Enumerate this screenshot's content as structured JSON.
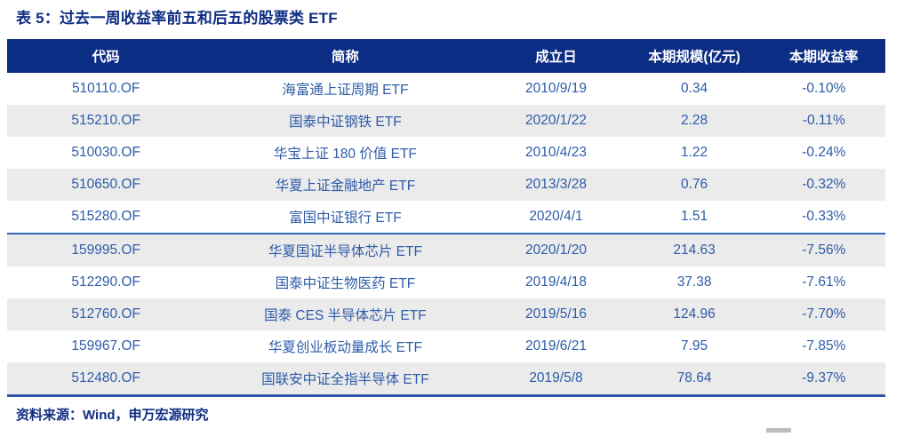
{
  "title": "表 5：过去一周收益率前五和后五的股票类 ETF",
  "source": "资料来源：Wind，申万宏源研究",
  "colors": {
    "header_bg": "#0c2d84",
    "header_text": "#ffffff",
    "cell_text": "#2e5ca8",
    "stripe_bg": "#ebebeb",
    "title_text": "#0f2d82",
    "divider": "#3565b5",
    "bottom_border": "#2f55a8"
  },
  "table": {
    "columns": [
      "代码",
      "简称",
      "成立日",
      "本期规模(亿元)",
      "本期收益率"
    ],
    "divider_after_row": 5,
    "rows": [
      [
        "510110.OF",
        "海富通上证周期 ETF",
        "2010/9/19",
        "0.34",
        "-0.10%"
      ],
      [
        "515210.OF",
        "国泰中证钢铁 ETF",
        "2020/1/22",
        "2.28",
        "-0.11%"
      ],
      [
        "510030.OF",
        "华宝上证 180 价值 ETF",
        "2010/4/23",
        "1.22",
        "-0.24%"
      ],
      [
        "510650.OF",
        "华夏上证金融地产 ETF",
        "2013/3/28",
        "0.76",
        "-0.32%"
      ],
      [
        "515280.OF",
        "富国中证银行 ETF",
        "2020/4/1",
        "1.51",
        "-0.33%"
      ],
      [
        "159995.OF",
        "华夏国证半导体芯片 ETF",
        "2020/1/20",
        "214.63",
        "-7.56%"
      ],
      [
        "512290.OF",
        "国泰中证生物医药 ETF",
        "2019/4/18",
        "37.38",
        "-7.61%"
      ],
      [
        "512760.OF",
        "国泰 CES 半导体芯片 ETF",
        "2019/5/16",
        "124.96",
        "-7.70%"
      ],
      [
        "159967.OF",
        "华夏创业板动量成长 ETF",
        "2019/6/21",
        "7.95",
        "-7.85%"
      ],
      [
        "512480.OF",
        "国联安中证全指半导体 ETF",
        "2019/5/8",
        "78.64",
        "-9.37%"
      ]
    ]
  },
  "chart_data": {
    "type": "table",
    "title": "表 5：过去一周收益率前五和后五的股票类 ETF",
    "columns": [
      "代码",
      "简称",
      "成立日",
      "本期规模(亿元)",
      "本期收益率"
    ],
    "rows": [
      [
        "510110.OF",
        "海富通上证周期 ETF",
        "2010/9/19",
        0.34,
        "-0.10%"
      ],
      [
        "515210.OF",
        "国泰中证钢铁 ETF",
        "2020/1/22",
        2.28,
        "-0.11%"
      ],
      [
        "510030.OF",
        "华宝上证 180 价值 ETF",
        "2010/4/23",
        1.22,
        "-0.24%"
      ],
      [
        "510650.OF",
        "华夏上证金融地产 ETF",
        "2013/3/28",
        0.76,
        "-0.32%"
      ],
      [
        "515280.OF",
        "富国中证银行 ETF",
        "2020/4/1",
        1.51,
        "-0.33%"
      ],
      [
        "159995.OF",
        "华夏国证半导体芯片 ETF",
        "2020/1/20",
        214.63,
        "-7.56%"
      ],
      [
        "512290.OF",
        "国泰中证生物医药 ETF",
        "2019/4/18",
        37.38,
        "-7.61%"
      ],
      [
        "512760.OF",
        "国泰 CES 半导体芯片 ETF",
        "2019/5/16",
        124.96,
        "-7.70%"
      ],
      [
        "159967.OF",
        "华夏创业板动量成长 ETF",
        "2019/6/21",
        7.95,
        "-7.85%"
      ],
      [
        "512480.OF",
        "国联安中证全指半导体 ETF",
        "2019/5/8",
        78.64,
        "-9.37%"
      ]
    ]
  }
}
